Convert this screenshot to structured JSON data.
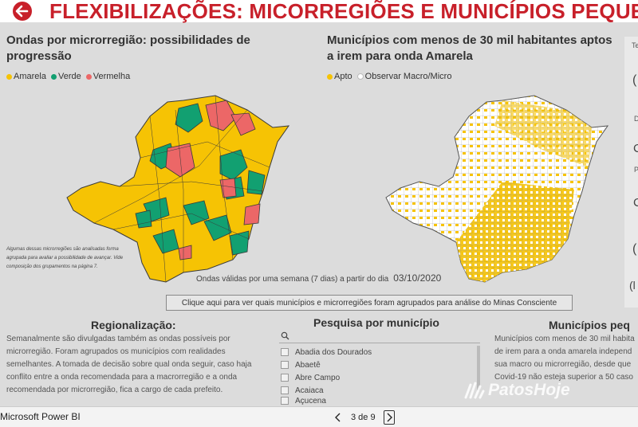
{
  "header": {
    "title": "FLEXIBILIZAÇÕES: MICORREGIÕES E MUNICÍPIOS PEQUE"
  },
  "left_map": {
    "title": "Ondas por microrregião: possibilidades de progressão",
    "legend": [
      {
        "label": "Amarela",
        "color": "#f6c304"
      },
      {
        "label": "Verde",
        "color": "#12a071"
      },
      {
        "label": "Vermelha",
        "color": "#ec6767"
      }
    ],
    "note": "Algumas dessas microrregiões são analisadas forma agrupada para avaliar a possibilidade de avançar. Vide composição dos grupamentos na página 7."
  },
  "right_map": {
    "title": "Municípios com menos de 30 mil habitantes aptos a irem para onda Amarela",
    "legend": [
      {
        "label": "Apto",
        "color": "#f6c304"
      },
      {
        "label": "Observar Macro/Micro",
        "color": "#ffffff"
      }
    ]
  },
  "validity": {
    "text": "Ondas válidas por uma semana (7 dias) a partir do dia",
    "date": "03/10/2020"
  },
  "link_box": "Clique aqui para ver quais municípios e microrregiões foram agrupados para análise do Minas Consciente",
  "regionalizacao": {
    "title": "Regionalização:",
    "lines": [
      "Semanalmente são divulgadas também as ondas possíveis por",
      "microrregião. Foram agrupados os municípios com realidades",
      "semelhantes. A tomada de decisão sobre qual onda seguir, caso haja",
      "conflito entre a onda recomendada para a macrorregião  e a onda",
      "recomendada por microrregião, fica a cargo de cada prefeito."
    ]
  },
  "pesquisa": {
    "title": "Pesquisa por município",
    "items": [
      "Abadia dos Dourados",
      "Abaetê",
      "Abre Campo",
      "Acaiaca",
      "Açucena"
    ]
  },
  "municipios": {
    "title": "Municípios peq",
    "lines": [
      "Municípios com menos de 30 mil habita",
      "de irem para a onda amarela independ",
      "sua macro ou microrregião, desde que",
      "Covid-19 não esteja superior a 50 caso"
    ]
  },
  "right_panel_glyphs": [
    "Te",
    "(",
    "D",
    "C",
    "P",
    "C",
    "(",
    "(l"
  ],
  "bottom": {
    "app": "Microsoft Power BI",
    "page": "3 de 9"
  },
  "watermark": "PatosHoje"
}
